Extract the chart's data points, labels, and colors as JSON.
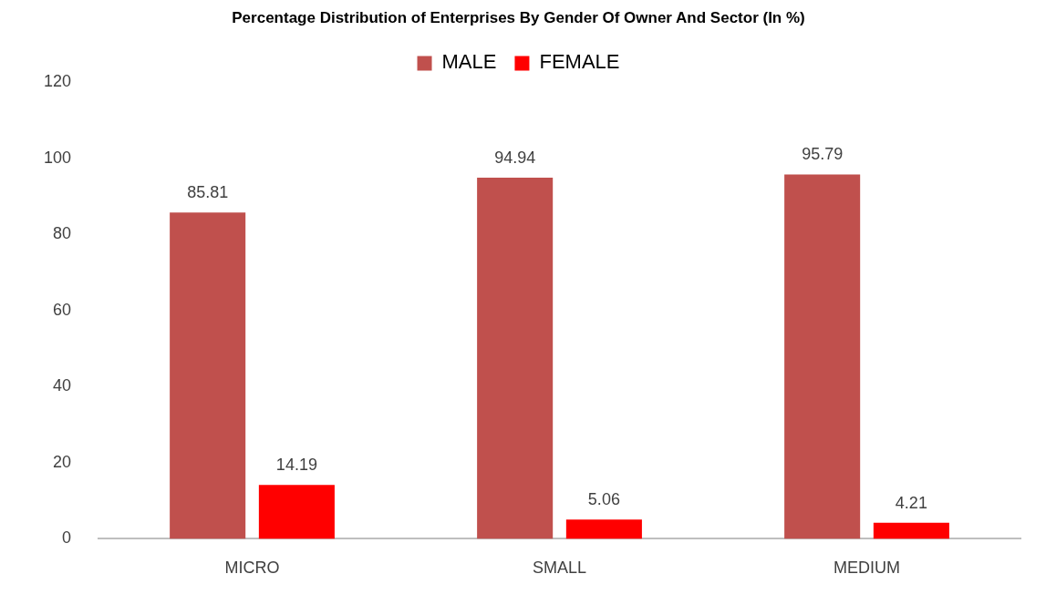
{
  "chart_data": {
    "type": "bar",
    "title": "Percentage Distribution of Enterprises By Gender Of Owner And Sector (In %)",
    "categories": [
      "MICRO",
      "SMALL",
      "MEDIUM"
    ],
    "series": [
      {
        "name": "MALE",
        "color": "#c0504d",
        "values": [
          85.81,
          94.94,
          95.79
        ]
      },
      {
        "name": "FEMALE",
        "color": "#ff0000",
        "values": [
          14.19,
          5.06,
          4.21
        ]
      }
    ],
    "ylim": [
      0,
      120
    ],
    "yticks": [
      0,
      20,
      40,
      60,
      80,
      100,
      120
    ],
    "grid": false,
    "legend": "top",
    "data_labels": true
  }
}
